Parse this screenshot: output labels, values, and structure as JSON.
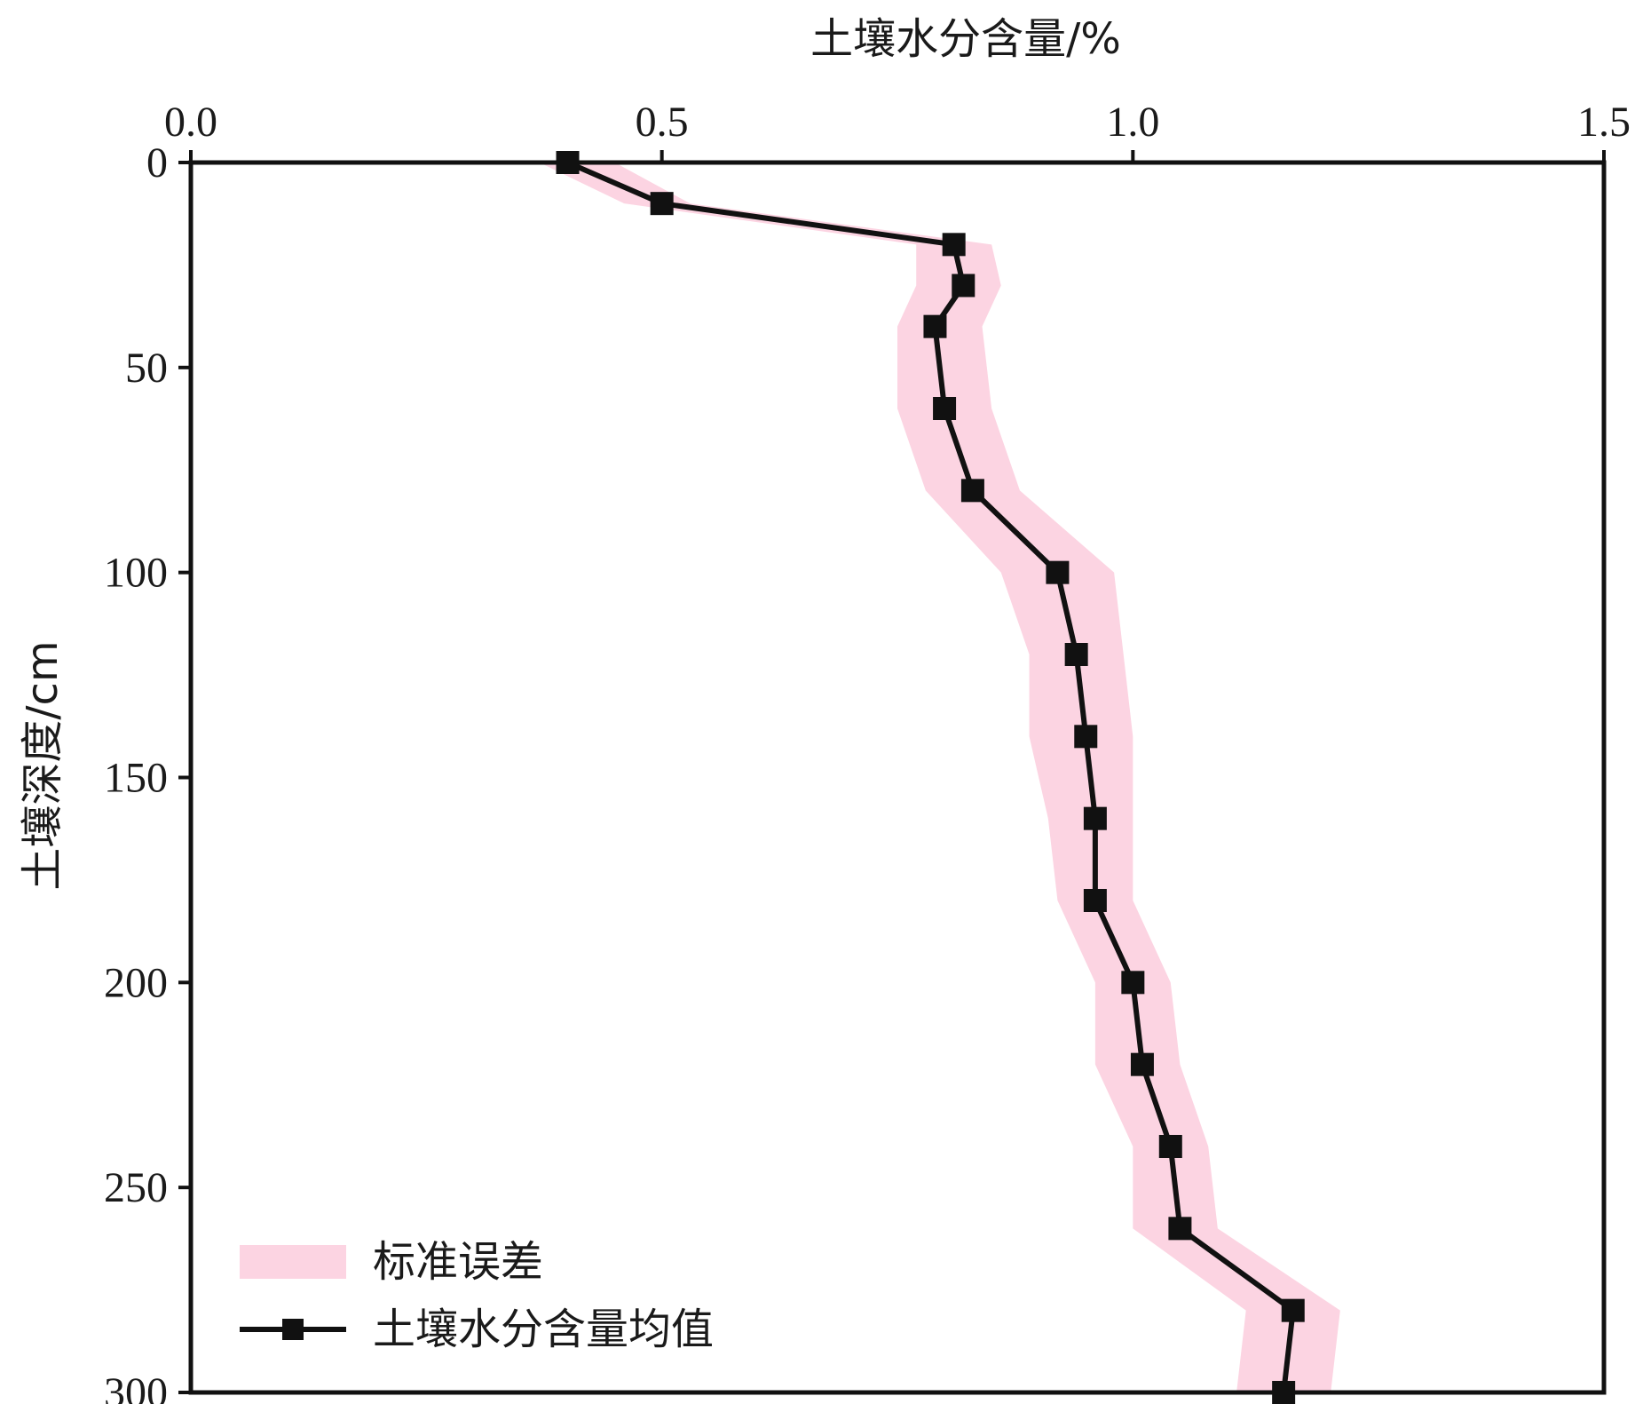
{
  "chart_data": {
    "type": "line",
    "title": "",
    "xlabel": "土壤水分含量/%",
    "ylabel": "土壤深度/cm",
    "xlim": [
      0.0,
      1.5
    ],
    "ylim": [
      0,
      300
    ],
    "y_inverted": true,
    "x_axis_position": "top",
    "xticks": [
      "0.0",
      "0.5",
      "1.0",
      "1.5"
    ],
    "yticks": [
      "0",
      "50",
      "100",
      "150",
      "200",
      "250",
      "300"
    ],
    "grid": false,
    "legend_position": "bottom-left",
    "series": [
      {
        "name": "土壤水分含量均值",
        "color": "#111111",
        "marker": "square",
        "depth": [
          0,
          10,
          20,
          30,
          40,
          60,
          80,
          100,
          120,
          140,
          160,
          180,
          200,
          220,
          240,
          260,
          280,
          300
        ],
        "values": [
          0.4,
          0.5,
          0.81,
          0.82,
          0.79,
          0.8,
          0.83,
          0.92,
          0.94,
          0.95,
          0.96,
          0.96,
          1.0,
          1.01,
          1.04,
          1.05,
          1.17,
          1.16
        ]
      }
    ],
    "band": {
      "name": "标准误差",
      "color": "#fcd4e2",
      "depth": [
        0,
        10,
        20,
        30,
        40,
        60,
        80,
        100,
        120,
        140,
        160,
        180,
        200,
        220,
        240,
        260,
        280,
        300
      ],
      "lower": [
        0.37,
        0.46,
        0.77,
        0.77,
        0.75,
        0.75,
        0.78,
        0.86,
        0.89,
        0.89,
        0.91,
        0.92,
        0.96,
        0.96,
        1.0,
        1.0,
        1.12,
        1.11
      ],
      "upper": [
        0.45,
        0.53,
        0.85,
        0.86,
        0.84,
        0.85,
        0.88,
        0.98,
        0.99,
        1.0,
        1.0,
        1.0,
        1.04,
        1.05,
        1.08,
        1.09,
        1.22,
        1.21
      ]
    }
  }
}
